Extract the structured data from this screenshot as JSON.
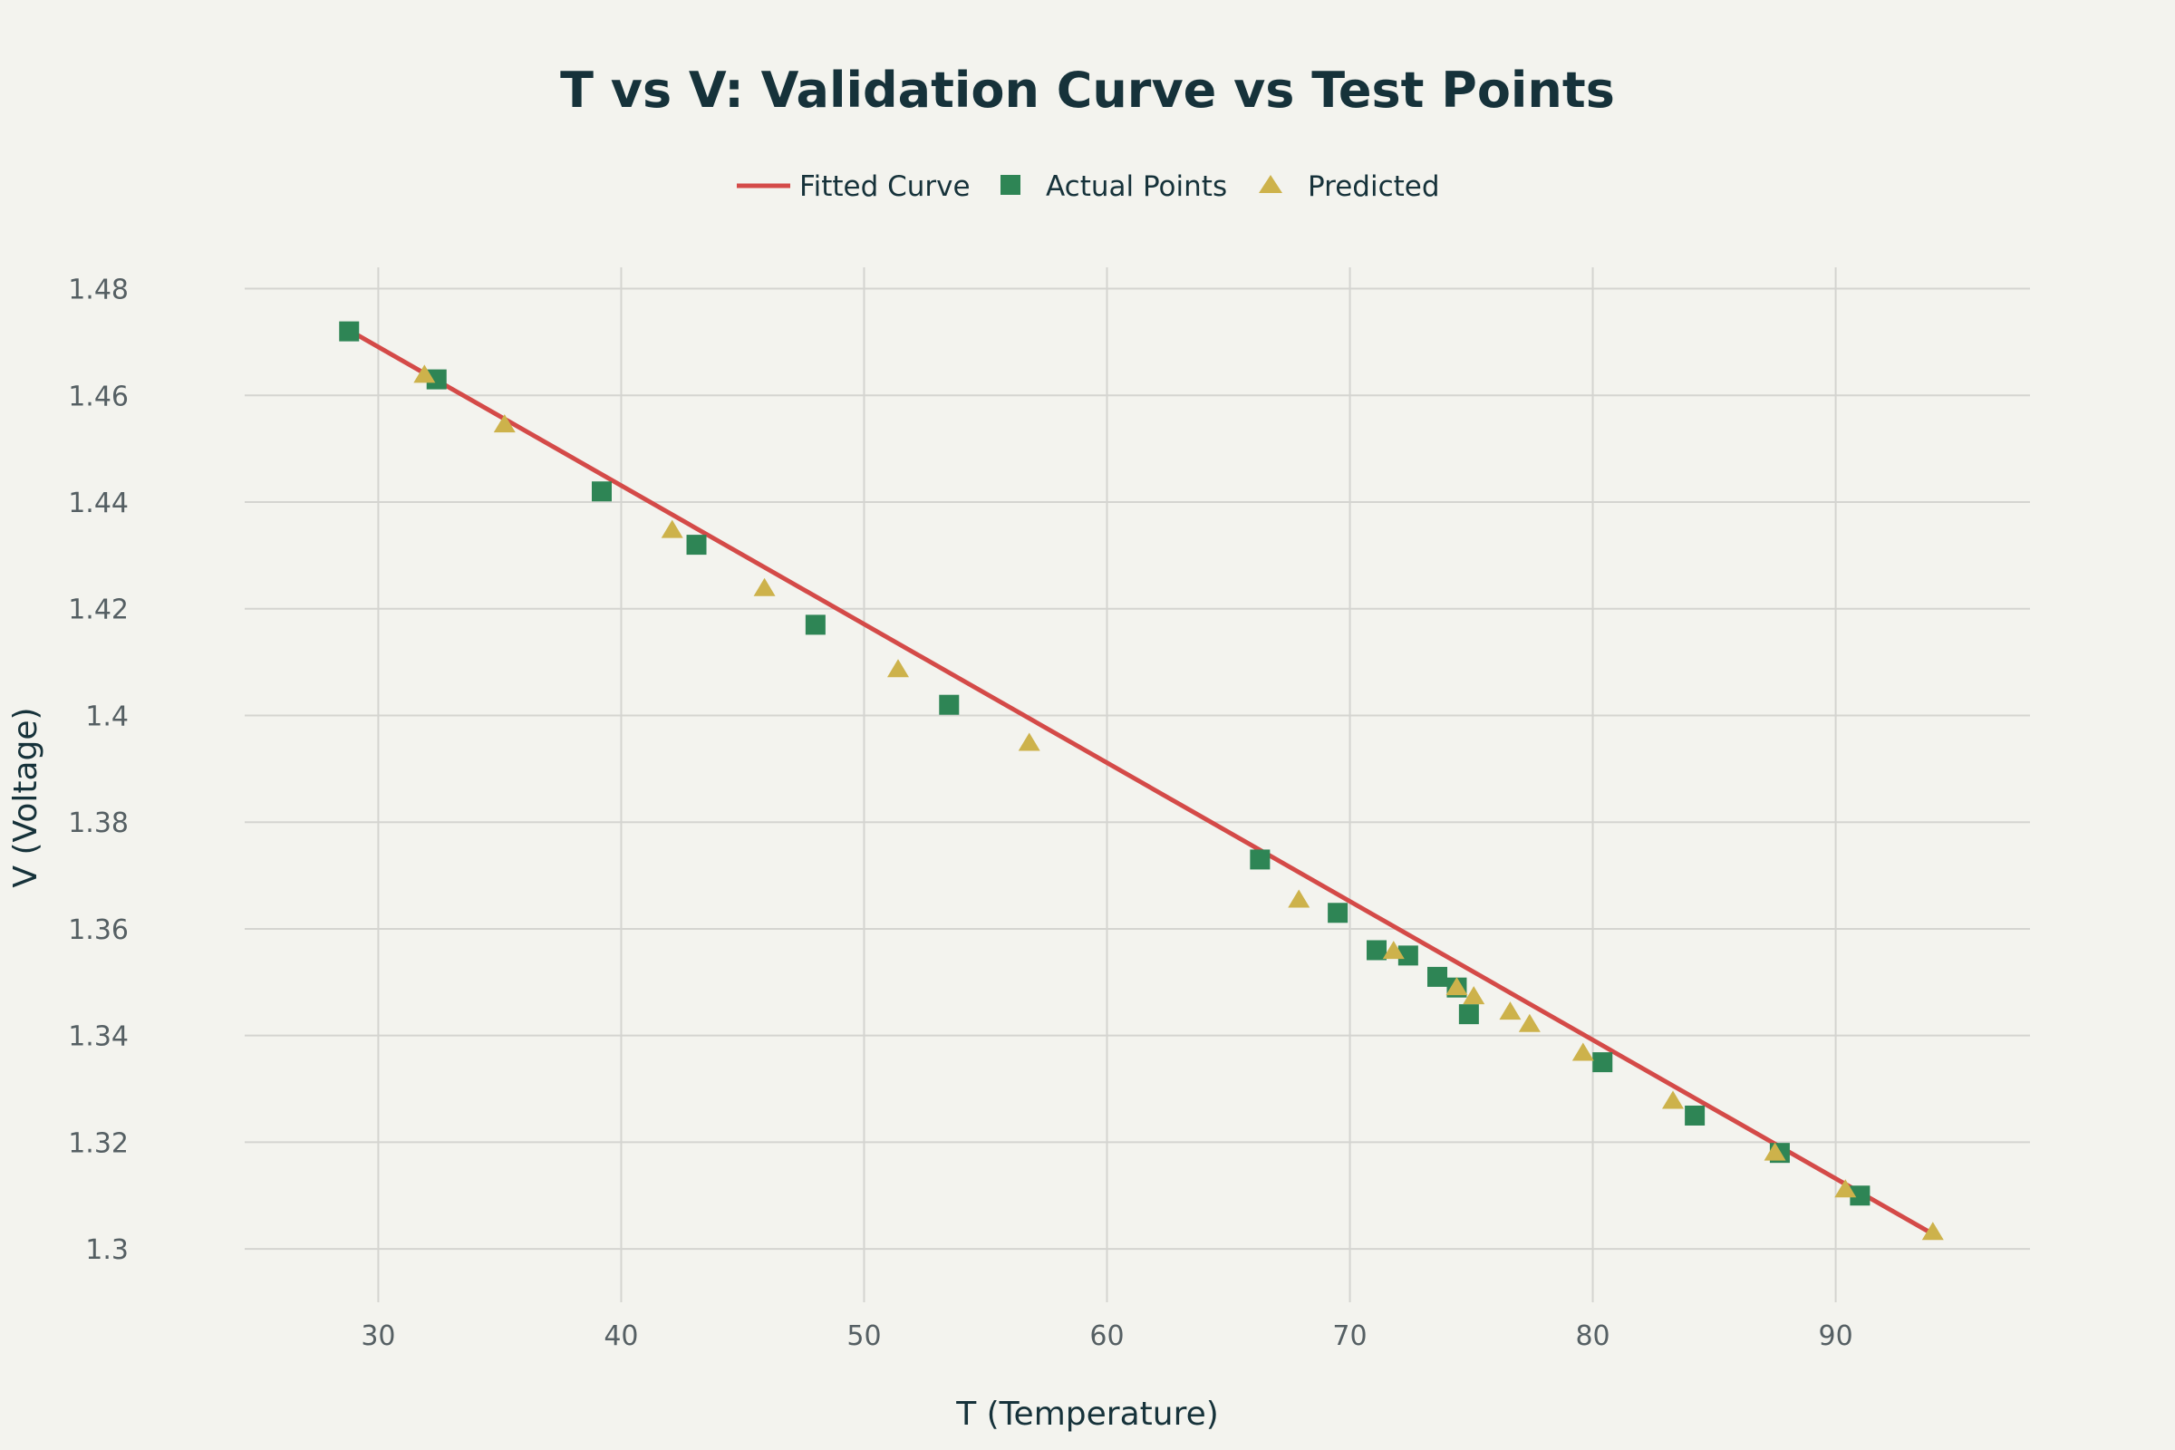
{
  "chart_data": {
    "type": "scatter",
    "title": "T vs V: Validation Curve vs Test Points",
    "xlabel": "T (Temperature)",
    "ylabel": "V (Voltage)",
    "xlim": [
      24.5,
      98
    ],
    "ylim": [
      1.29,
      1.484
    ],
    "xticks": [
      30,
      40,
      50,
      60,
      70,
      80,
      90
    ],
    "xtick_labels": [
      "30",
      "40",
      "50",
      "60",
      "70",
      "80",
      "90"
    ],
    "yticks": [
      1.3,
      1.32,
      1.34,
      1.36,
      1.38,
      1.4,
      1.42,
      1.44,
      1.46,
      1.48
    ],
    "ytick_labels": [
      "1.3",
      "1.32",
      "1.34",
      "1.36",
      "1.38",
      "1.4",
      "1.42",
      "1.44",
      "1.46",
      "1.48"
    ],
    "grid": true,
    "legend_position": "top-center",
    "series": [
      {
        "name": "Fitted Curve",
        "kind": "line",
        "color": "#d44a48",
        "x": [
          28.8,
          94
        ],
        "y": [
          1.4722,
          1.3028
        ]
      },
      {
        "name": "Actual Points",
        "kind": "marker",
        "marker": "square",
        "color": "#2e8555",
        "x": [
          28.8,
          32.4,
          39.2,
          43.1,
          48.0,
          53.5,
          66.3,
          69.5,
          71.1,
          72.4,
          73.6,
          74.4,
          74.9,
          80.4,
          84.2,
          87.7,
          91.0
        ],
        "y": [
          1.472,
          1.463,
          1.442,
          1.432,
          1.417,
          1.402,
          1.373,
          1.363,
          1.356,
          1.355,
          1.351,
          1.349,
          1.344,
          1.335,
          1.325,
          1.318,
          1.31
        ]
      },
      {
        "name": "Predicted",
        "kind": "marker",
        "marker": "triangle",
        "color": "#cdb24b",
        "x": [
          31.9,
          35.2,
          42.1,
          45.9,
          51.4,
          56.8,
          67.9,
          71.8,
          74.4,
          75.1,
          76.6,
          77.4,
          79.6,
          83.3,
          87.5,
          90.4,
          94.0
        ],
        "y": [
          1.4639,
          1.4546,
          1.4348,
          1.4239,
          1.4087,
          1.3949,
          1.3655,
          1.3559,
          1.3491,
          1.3474,
          1.3445,
          1.3422,
          1.3368,
          1.3278,
          1.3181,
          1.3112,
          1.3032
        ]
      }
    ]
  }
}
